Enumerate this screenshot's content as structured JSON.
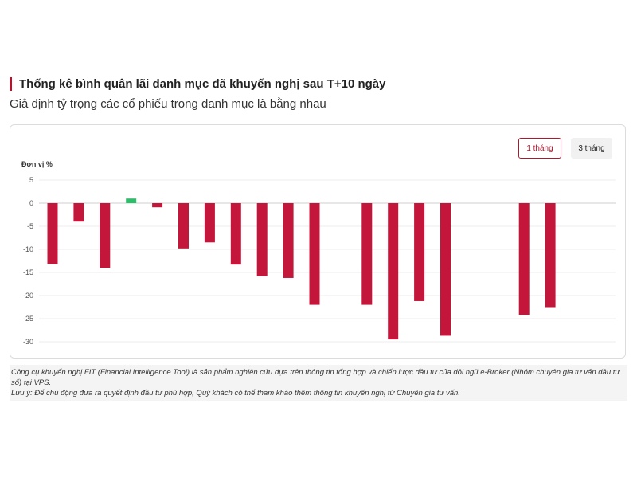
{
  "header": {
    "title": "Thống kê bình quân lãi danh mục đã khuyến nghị sau T+10 ngày",
    "subtitle": "Giả định tỷ trọng các cổ phiếu trong danh mục là bằng nhau"
  },
  "controls": {
    "period_1": "1 tháng",
    "period_2": "3 tháng",
    "active": "1 tháng"
  },
  "chart_data": {
    "type": "bar",
    "unit_label": "Đơn vị %",
    "ylim": [
      -30,
      5
    ],
    "yticks": [
      5,
      0,
      -5,
      -10,
      -15,
      -20,
      -25,
      -30
    ],
    "grid": true,
    "legend": "none",
    "slots": 21,
    "values": [
      -13.2,
      -4.0,
      -14.0,
      1.0,
      -0.9,
      -9.8,
      -8.5,
      -13.3,
      -15.8,
      -16.2,
      -22.0,
      null,
      -22.0,
      -29.5,
      -21.2,
      -28.7,
      null,
      null,
      -24.2,
      -22.5,
      null
    ],
    "colors": {
      "negative": "#c4163a",
      "positive": "#2dbe6c"
    }
  },
  "footer": {
    "note_1": "Công cụ khuyến nghị FIT (Financial Intelligence Tool) là sản phẩm nghiên cứu dựa trên thông tin tổng hợp và chiến lược đầu tư của đội ngũ e-Broker (Nhóm chuyên gia tư vấn đầu tư số) tại VPS.",
    "note_2": "Lưu ý: Để chủ động đưa ra quyết định đầu tư phù hợp, Quý khách có thể tham khảo thêm thông tin khuyến nghị từ Chuyên gia tư vấn."
  }
}
